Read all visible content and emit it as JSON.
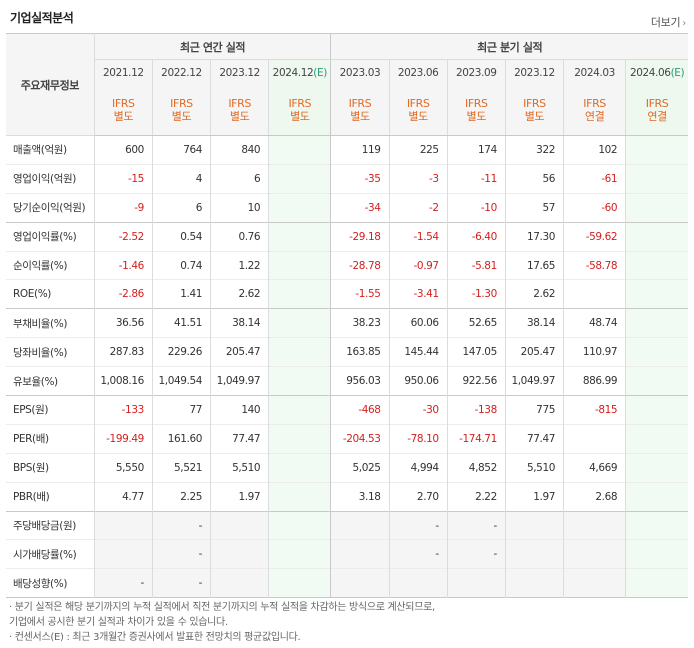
{
  "header": {
    "title": "기업실적분석",
    "more_label": "더보기",
    "more_arrow": "›"
  },
  "table": {
    "corner_label": "주요재무정보",
    "annual_group_label": "최근 연간 실적",
    "quarter_group_label": "최근 분기 실적",
    "annual_periods": [
      "2021.12",
      "2022.12",
      "2023.12",
      "2024.12(E)"
    ],
    "quarter_periods": [
      "2023.03",
      "2023.06",
      "2023.09",
      "2023.12",
      "2024.03",
      "2024.06(E)"
    ],
    "standards_top": [
      "IFRS",
      "IFRS",
      "IFRS",
      "IFRS",
      "IFRS",
      "IFRS",
      "IFRS",
      "IFRS",
      "IFRS",
      "IFRS"
    ],
    "standards_bottom": [
      "별도",
      "별도",
      "별도",
      "별도",
      "별도",
      "별도",
      "별도",
      "별도",
      "연결",
      "연결"
    ],
    "rows": [
      {
        "label": "매출액(억원)",
        "values": [
          "600",
          "764",
          "840",
          "",
          "119",
          "225",
          "174",
          "322",
          "102",
          ""
        ]
      },
      {
        "label": "영업이익(억원)",
        "values": [
          "-15",
          "4",
          "6",
          "",
          "-35",
          "-3",
          "-11",
          "56",
          "-61",
          ""
        ]
      },
      {
        "label": "당기순이익(억원)",
        "values": [
          "-9",
          "6",
          "10",
          "",
          "-34",
          "-2",
          "-10",
          "57",
          "-60",
          ""
        ]
      },
      {
        "label": "영업이익률(%)",
        "values": [
          "-2.52",
          "0.54",
          "0.76",
          "",
          "-29.18",
          "-1.54",
          "-6.40",
          "17.30",
          "-59.62",
          ""
        ]
      },
      {
        "label": "순이익률(%)",
        "values": [
          "-1.46",
          "0.74",
          "1.22",
          "",
          "-28.78",
          "-0.97",
          "-5.81",
          "17.65",
          "-58.78",
          ""
        ]
      },
      {
        "label": "ROE(%)",
        "values": [
          "-2.86",
          "1.41",
          "2.62",
          "",
          "-1.55",
          "-3.41",
          "-1.30",
          "2.62",
          "",
          ""
        ]
      },
      {
        "label": "부채비율(%)",
        "values": [
          "36.56",
          "41.51",
          "38.14",
          "",
          "38.23",
          "60.06",
          "52.65",
          "38.14",
          "48.74",
          ""
        ]
      },
      {
        "label": "당좌비율(%)",
        "values": [
          "287.83",
          "229.26",
          "205.47",
          "",
          "163.85",
          "145.44",
          "147.05",
          "205.47",
          "110.97",
          ""
        ]
      },
      {
        "label": "유보율(%)",
        "values": [
          "1,008.16",
          "1,049.54",
          "1,049.97",
          "",
          "956.03",
          "950.06",
          "922.56",
          "1,049.97",
          "886.99",
          ""
        ]
      },
      {
        "label": "EPS(원)",
        "values": [
          "-133",
          "77",
          "140",
          "",
          "-468",
          "-30",
          "-138",
          "775",
          "-815",
          ""
        ]
      },
      {
        "label": "PER(배)",
        "values": [
          "-199.49",
          "161.60",
          "77.47",
          "",
          "-204.53",
          "-78.10",
          "-174.71",
          "77.47",
          "",
          ""
        ]
      },
      {
        "label": "BPS(원)",
        "values": [
          "5,550",
          "5,521",
          "5,510",
          "",
          "5,025",
          "4,994",
          "4,852",
          "5,510",
          "4,669",
          ""
        ]
      },
      {
        "label": "PBR(배)",
        "values": [
          "4.77",
          "2.25",
          "1.97",
          "",
          "3.18",
          "2.70",
          "2.22",
          "1.97",
          "2.68",
          ""
        ]
      },
      {
        "label": "주당배당금(원)",
        "values": [
          "",
          "-",
          "",
          "",
          "",
          "-",
          "-",
          "",
          "",
          ""
        ]
      },
      {
        "label": "시가배당률(%)",
        "values": [
          "",
          "-",
          "",
          "",
          "",
          "-",
          "-",
          "",
          "",
          ""
        ]
      },
      {
        "label": "배당성향(%)",
        "values": [
          "-",
          "-",
          "",
          "",
          "",
          "",
          "",
          "",
          "",
          ""
        ]
      }
    ]
  },
  "notes": [
    "· 분기 실적은 해당 분기까지의 누적 실적에서 직전 분기까지의 누적 실적을 차감하는 방식으로 계산되므로,",
    "  기업에서 공시한 분기 실적과 차이가 있을 수 있습니다.",
    "· 컨센서스(E) : 최근 3개월간 증권사에서 발표한 전망치의 평균값입니다."
  ]
}
